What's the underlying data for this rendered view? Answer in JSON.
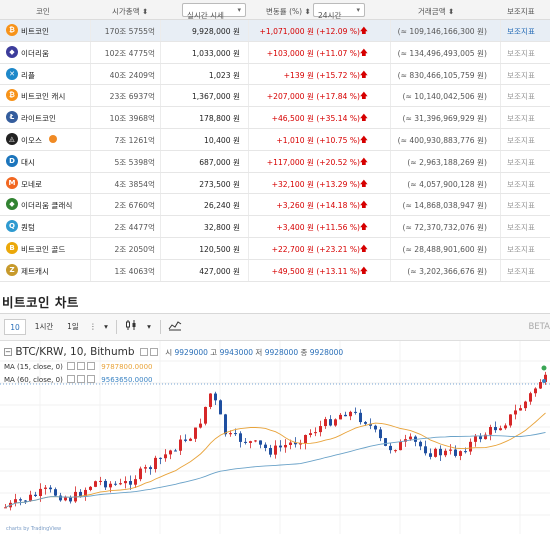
{
  "table": {
    "headers": {
      "coin": "코인",
      "market_cap": "시가총액",
      "price_select": "실시간 시세",
      "change": "변동률 (%)",
      "period_select": "24시간",
      "volume": "거래금액",
      "aux": "보조지표"
    },
    "rows": [
      {
        "name": "비트코인",
        "icon": "bitcoin-icon",
        "color": "#f7931a",
        "glyph": "₿",
        "cap": "170조 5755억",
        "price": "9,928,000 원",
        "change": "+1,071,000 원 (+12.09 %)",
        "volume": "(≈ 109,146,166,300 원)",
        "aux": "보조지표",
        "selected": true
      },
      {
        "name": "이더리움",
        "icon": "ethereum-icon",
        "color": "#3c3c9b",
        "glyph": "◆",
        "cap": "102조 4775억",
        "price": "1,033,000 원",
        "change": "+103,000 원 (+11.07 %)",
        "volume": "(≈ 134,496,493,005 원)",
        "aux": "보조지표",
        "selected": false
      },
      {
        "name": "리플",
        "icon": "ripple-icon",
        "color": "#1e88c9",
        "glyph": "✕",
        "cap": "40조 2409억",
        "price": "1,023 원",
        "change": "+139 원 (+15.72 %)",
        "volume": "(≈ 830,466,105,759 원)",
        "aux": "보조지표",
        "selected": false
      },
      {
        "name": "비트코인 캐시",
        "icon": "bitcoin-cash-icon",
        "color": "#f7931a",
        "glyph": "₿",
        "cap": "23조 6937억",
        "price": "1,367,000 원",
        "change": "+207,000 원 (+17.84 %)",
        "volume": "(≈ 10,140,042,506 원)",
        "aux": "보조지표",
        "selected": false
      },
      {
        "name": "라이트코인",
        "icon": "litecoin-icon",
        "color": "#345d9d",
        "glyph": "Ł",
        "cap": "10조 3968억",
        "price": "178,800 원",
        "change": "+46,500 원 (+35.14 %)",
        "volume": "(≈ 31,396,969,929 원)",
        "aux": "보조지표",
        "selected": false
      },
      {
        "name": "이오스",
        "icon": "eos-icon",
        "color": "#222222",
        "glyph": "◬",
        "cap": "7조 1261억",
        "price": "10,400 원",
        "change": "+1,010 원 (+10.75 %)",
        "volume": "(≈ 400,930,883,776 원)",
        "aux": "보조지표",
        "selected": false,
        "badge": true
      },
      {
        "name": "대시",
        "icon": "dash-icon",
        "color": "#1c75bc",
        "glyph": "D",
        "cap": "5조 5398억",
        "price": "687,000 원",
        "change": "+117,000 원 (+20.52 %)",
        "volume": "(≈ 2,963,188,269 원)",
        "aux": "보조지표",
        "selected": false
      },
      {
        "name": "모네로",
        "icon": "monero-icon",
        "color": "#f26822",
        "glyph": "M",
        "cap": "4조 3854억",
        "price": "273,500 원",
        "change": "+32,100 원 (+13.29 %)",
        "volume": "(≈ 4,057,900,128 원)",
        "aux": "보조지표",
        "selected": false
      },
      {
        "name": "이더리움 클래식",
        "icon": "ethereum-classic-icon",
        "color": "#328332",
        "glyph": "◆",
        "cap": "2조 6760억",
        "price": "26,240 원",
        "change": "+3,260 원 (+14.18 %)",
        "volume": "(≈ 14,868,038,947 원)",
        "aux": "보조지표",
        "selected": false
      },
      {
        "name": "퀀텀",
        "icon": "qtum-icon",
        "color": "#2e9ad0",
        "glyph": "Q",
        "cap": "2조 4477억",
        "price": "32,800 원",
        "change": "+3,400 원 (+11.56 %)",
        "volume": "(≈ 72,370,732,076 원)",
        "aux": "보조지표",
        "selected": false
      },
      {
        "name": "비트코인 골드",
        "icon": "bitcoin-gold-icon",
        "color": "#eba809",
        "glyph": "B",
        "cap": "2조 2050억",
        "price": "120,500 원",
        "change": "+22,700 원 (+23.21 %)",
        "volume": "(≈ 28,488,901,600 원)",
        "aux": "보조지표",
        "selected": false
      },
      {
        "name": "제트캐시",
        "icon": "zcash-icon",
        "color": "#c79a2c",
        "glyph": "Z",
        "cap": "1조 4063억",
        "price": "427,000 원",
        "change": "+49,500 원 (+13.11 %)",
        "volume": "(≈ 3,202,366,676 원)",
        "aux": "보조지표",
        "selected": false
      }
    ]
  },
  "chart_section": {
    "title": "비트코인 차트"
  },
  "toolbar": {
    "interval_10": "10",
    "interval_1h": "1시간",
    "interval_1d": "1일",
    "more": "⋮",
    "beta": "BETA"
  },
  "legend": {
    "symbol": "BTC/KRW, 10, Bithumb",
    "open_label": "시",
    "open": "9929000",
    "high_label": "고",
    "high": "9943000",
    "low_label": "저",
    "low": "9928000",
    "close_label": "종",
    "close": "9928000",
    "ma1_label": "MA (15, close, 0)",
    "ma1_value": "9787800.0000",
    "ma2_label": "MA (60, close, 0)",
    "ma2_value": "9563650.0000",
    "credit": "charts by TradingView"
  },
  "colors": {
    "up": "#d62728",
    "down": "#1f4fa0",
    "ma15": "#e8a33a",
    "ma60": "#6aa2c8",
    "change_text": "#d60000"
  }
}
